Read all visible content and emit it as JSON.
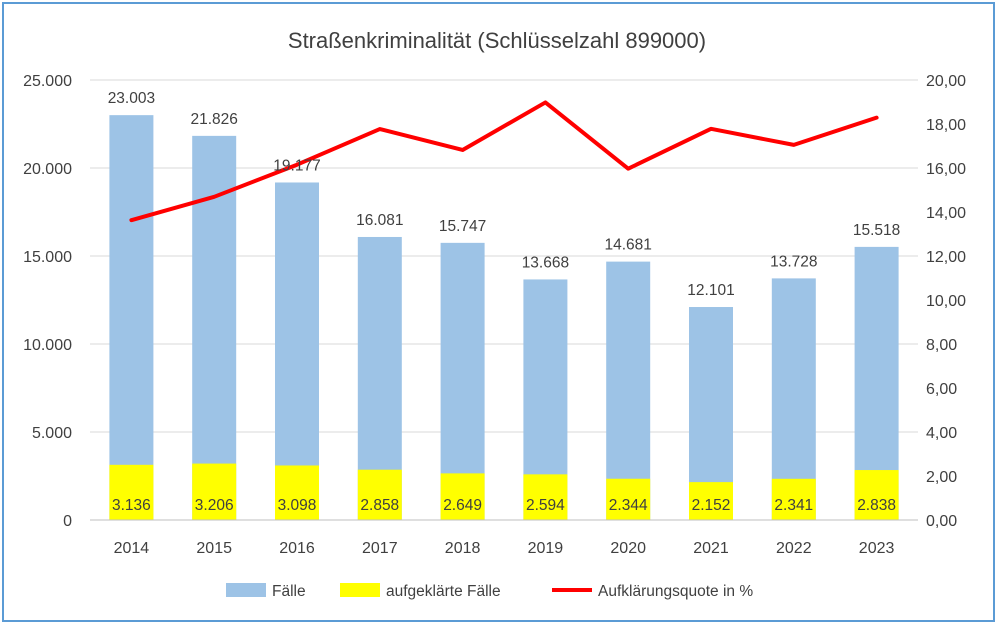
{
  "chart_data": {
    "type": "bar",
    "title": "Straßenkriminalität (Schlüsselzahl 899000)",
    "categories": [
      "2014",
      "2015",
      "2016",
      "2017",
      "2018",
      "2019",
      "2020",
      "2021",
      "2022",
      "2023"
    ],
    "series": [
      {
        "name": "Fälle",
        "type": "bar",
        "axis": "left",
        "color": "#9dc3e6",
        "values": [
          23003,
          21826,
          19177,
          16081,
          15747,
          13668,
          14681,
          12101,
          13728,
          15518
        ],
        "labels": [
          "23.003",
          "21.826",
          "19.177",
          "16.081",
          "15.747",
          "13.668",
          "14.681",
          "12.101",
          "13.728",
          "15.518"
        ]
      },
      {
        "name": "aufgeklärte Fälle",
        "type": "bar",
        "axis": "left",
        "color": "#ffff00",
        "values": [
          3136,
          3206,
          3098,
          2858,
          2649,
          2594,
          2344,
          2152,
          2341,
          2838
        ],
        "labels": [
          "3.136",
          "3.206",
          "3.098",
          "2.858",
          "2.649",
          "2.594",
          "2.344",
          "2.152",
          "2.341",
          "2.838"
        ]
      },
      {
        "name": "Aufklärungsquote in %",
        "type": "line",
        "axis": "right",
        "color": "#ff0000",
        "values": [
          13.63,
          14.69,
          16.15,
          17.77,
          16.82,
          18.98,
          15.97,
          17.78,
          17.05,
          18.29
        ]
      }
    ],
    "y_left": {
      "ylim": [
        0,
        25000
      ],
      "ticks": [
        0,
        5000,
        10000,
        15000,
        20000,
        25000
      ],
      "tick_labels": [
        "0",
        "5.000",
        "10.000",
        "15.000",
        "20.000",
        "25.000"
      ]
    },
    "y_right": {
      "ylim": [
        0,
        20
      ],
      "ticks": [
        0,
        2,
        4,
        6,
        8,
        10,
        12,
        14,
        16,
        18,
        20
      ],
      "tick_labels": [
        "0,00",
        "2,00",
        "4,00",
        "6,00",
        "8,00",
        "10,00",
        "12,00",
        "14,00",
        "16,00",
        "18,00",
        "20,00"
      ]
    },
    "grid": true,
    "legend_position": "bottom"
  }
}
